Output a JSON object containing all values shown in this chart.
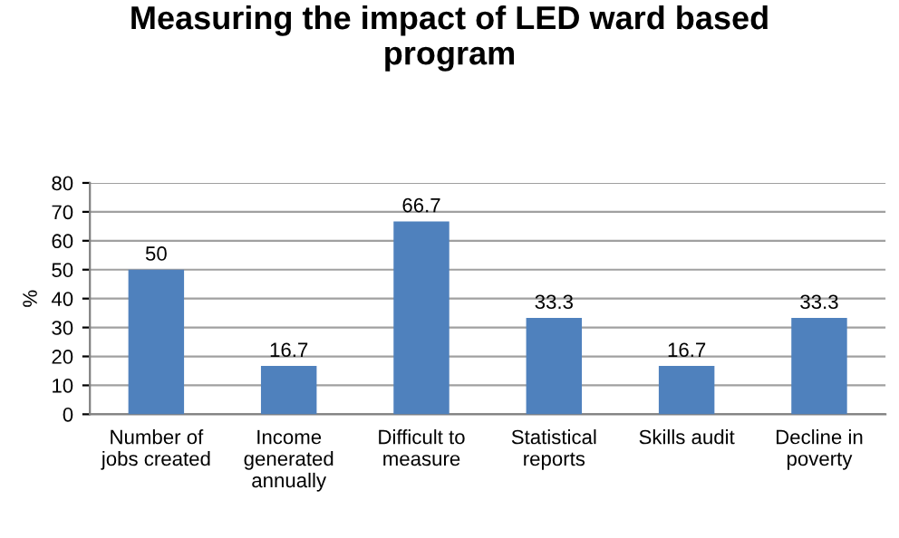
{
  "chart_data": {
    "type": "bar",
    "title": "Measuring the impact of LED ward based program",
    "ylabel": "%",
    "categories": [
      "Number of jobs created",
      "Income generated annually",
      "Difficult to measure",
      "Statistical reports",
      "Skills audit",
      "Decline in poverty"
    ],
    "values": [
      50,
      16.7,
      66.7,
      33.3,
      16.7,
      33.3
    ],
    "color": "#4f81bd",
    "ylim": [
      0,
      80
    ],
    "yticks": [
      0,
      10,
      20,
      30,
      40,
      50,
      60,
      70,
      80
    ],
    "grid": "y",
    "data_labels": true
  }
}
